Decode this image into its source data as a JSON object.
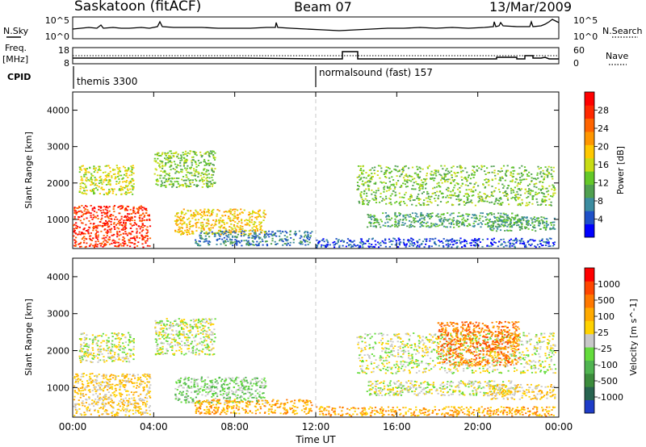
{
  "header": {
    "station": "Saskatoon (fitACF)",
    "beam": "Beam 07",
    "date": "13/Mar/2009"
  },
  "left_labels": {
    "nsky": "N.Sky",
    "freq_line1": "Freq.",
    "freq_line2": "[MHz]",
    "cpid": "CPID"
  },
  "right_labels": {
    "nsearch": "N.Search",
    "nave": "Nave"
  },
  "noise_panel": {
    "left_ticks": [
      "10^5",
      "10^0"
    ],
    "right_ticks": [
      "10^5",
      "10^0"
    ]
  },
  "freq_panel": {
    "left_ticks": [
      "18",
      "8"
    ],
    "right_ticks": [
      "60",
      "0"
    ]
  },
  "cpid_panel": {
    "segment1": "themis 3300",
    "segment2": "normalsound (fast) 157"
  },
  "colors": {
    "axis": "#000000",
    "dashed_divider": "#c8c8c8",
    "ground_scatter": "#c8c8c8"
  },
  "chart_data": [
    {
      "type": "heatmap",
      "name": "power",
      "ylabel": "Slant Range [km]",
      "xlabel": "Time UT",
      "xlim": [
        0,
        24
      ],
      "ylim": [
        200,
        4500
      ],
      "y_ticks": [
        "1000",
        "2000",
        "3000",
        "4000"
      ],
      "x_ticks": [
        "00:00",
        "04:00",
        "08:00",
        "12:00",
        "16:00",
        "20:00",
        "00:00"
      ],
      "colorbar": {
        "label": "Power [dB]",
        "ticks": [
          "4",
          "8",
          "12",
          "16",
          "20",
          "24",
          "28"
        ],
        "colors": [
          "#0000ff",
          "#1e50c8",
          "#3c8ca0",
          "#50a050",
          "#64c828",
          "#c8dc14",
          "#ffc800",
          "#ff9600",
          "#ff6400",
          "#ff2800",
          "#ff0000"
        ]
      },
      "regions": [
        {
          "x": [
            0.0,
            3.8
          ],
          "y": [
            250,
            1400
          ],
          "level": 9
        },
        {
          "x": [
            0.3,
            3.0
          ],
          "y": [
            1700,
            2500
          ],
          "level": 5
        },
        {
          "x": [
            4.0,
            7.0
          ],
          "y": [
            1900,
            2900
          ],
          "level": 4
        },
        {
          "x": [
            5.0,
            9.5
          ],
          "y": [
            600,
            1300
          ],
          "level": 6
        },
        {
          "x": [
            6.0,
            11.8
          ],
          "y": [
            300,
            700
          ],
          "level": 2
        },
        {
          "x": [
            14.0,
            23.8
          ],
          "y": [
            1400,
            2500
          ],
          "level": 4
        },
        {
          "x": [
            14.5,
            22.0
          ],
          "y": [
            800,
            1200
          ],
          "level": 3
        },
        {
          "x": [
            20.5,
            23.8
          ],
          "y": [
            700,
            1100
          ],
          "level": 3
        },
        {
          "x": [
            12.0,
            23.8
          ],
          "y": [
            250,
            500
          ],
          "level": 1
        }
      ]
    },
    {
      "type": "heatmap",
      "name": "velocity",
      "ylabel": "Slant Range [km]",
      "xlabel": "Time UT",
      "xlim": [
        0,
        24
      ],
      "ylim": [
        200,
        4500
      ],
      "y_ticks": [
        "1000",
        "2000",
        "3000",
        "4000"
      ],
      "x_ticks": [
        "00:00",
        "04:00",
        "08:00",
        "12:00",
        "16:00",
        "20:00",
        "00:00"
      ],
      "colorbar": {
        "label": "Velocity [m s^-1]",
        "ticks": [
          "1000",
          "500",
          "100",
          "25",
          "-25",
          "-100",
          "-500",
          "-1000"
        ],
        "colors": [
          "#1e3cc8",
          "#286450",
          "#3c8c3c",
          "#50b450",
          "#64dc3c",
          "#c8c8c8",
          "#ffd200",
          "#ffaa00",
          "#ff7800",
          "#ff4600",
          "#ff0000"
        ]
      },
      "regions": [
        {
          "x": [
            0.0,
            3.8
          ],
          "y": [
            250,
            1400
          ],
          "level": 6
        },
        {
          "x": [
            0.3,
            3.0
          ],
          "y": [
            1700,
            2500
          ],
          "level": 5
        },
        {
          "x": [
            4.0,
            7.0
          ],
          "y": [
            1900,
            2900
          ],
          "level": 5
        },
        {
          "x": [
            5.0,
            9.5
          ],
          "y": [
            600,
            1300
          ],
          "level": 4
        },
        {
          "x": [
            6.0,
            11.8
          ],
          "y": [
            300,
            700
          ],
          "level": 7
        },
        {
          "x": [
            14.0,
            23.8
          ],
          "y": [
            1400,
            2500
          ],
          "level": 5
        },
        {
          "x": [
            18.0,
            22.0
          ],
          "y": [
            1600,
            2800
          ],
          "level": 8
        },
        {
          "x": [
            14.5,
            22.0
          ],
          "y": [
            800,
            1200
          ],
          "level": 5
        },
        {
          "x": [
            20.5,
            23.8
          ],
          "y": [
            700,
            1100
          ],
          "level": 6
        },
        {
          "x": [
            12.0,
            23.8
          ],
          "y": [
            250,
            500
          ],
          "level": 7
        }
      ]
    }
  ]
}
